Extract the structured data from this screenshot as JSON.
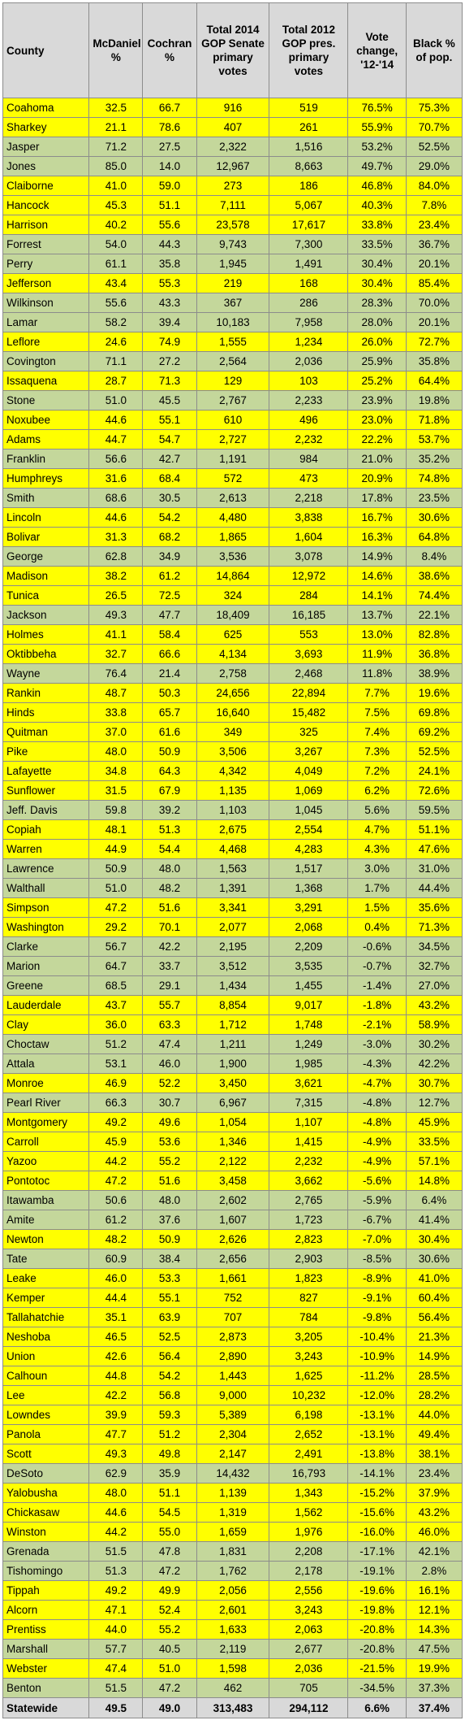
{
  "headers": [
    "County",
    "McDaniel %",
    "Cochran %",
    "Total 2014 GOP Senate primary votes",
    "Total 2012 GOP pres. primary votes",
    "Vote change, '12-'14",
    "Black % of pop."
  ],
  "colors": {
    "header_bg": "#d9d9d9",
    "yellow": "#ffff00",
    "green": "#c4d79b",
    "border": "#8c8c8c"
  },
  "rows": [
    {
      "county": "Coahoma",
      "mcdaniel": "32.5",
      "cochran": "66.7",
      "votes_2014": "916",
      "votes_2012": "519",
      "change": "76.5%",
      "black": "75.3%",
      "hl": "yellow"
    },
    {
      "county": "Sharkey",
      "mcdaniel": "21.1",
      "cochran": "78.6",
      "votes_2014": "407",
      "votes_2012": "261",
      "change": "55.9%",
      "black": "70.7%",
      "hl": "yellow"
    },
    {
      "county": "Jasper",
      "mcdaniel": "71.2",
      "cochran": "27.5",
      "votes_2014": "2,322",
      "votes_2012": "1,516",
      "change": "53.2%",
      "black": "52.5%",
      "hl": "green"
    },
    {
      "county": "Jones",
      "mcdaniel": "85.0",
      "cochran": "14.0",
      "votes_2014": "12,967",
      "votes_2012": "8,663",
      "change": "49.7%",
      "black": "29.0%",
      "hl": "green"
    },
    {
      "county": "Claiborne",
      "mcdaniel": "41.0",
      "cochran": "59.0",
      "votes_2014": "273",
      "votes_2012": "186",
      "change": "46.8%",
      "black": "84.0%",
      "hl": "yellow"
    },
    {
      "county": "Hancock",
      "mcdaniel": "45.3",
      "cochran": "51.1",
      "votes_2014": "7,111",
      "votes_2012": "5,067",
      "change": "40.3%",
      "black": "7.8%",
      "hl": "yellow"
    },
    {
      "county": "Harrison",
      "mcdaniel": "40.2",
      "cochran": "55.6",
      "votes_2014": "23,578",
      "votes_2012": "17,617",
      "change": "33.8%",
      "black": "23.4%",
      "hl": "yellow"
    },
    {
      "county": "Forrest",
      "mcdaniel": "54.0",
      "cochran": "44.3",
      "votes_2014": "9,743",
      "votes_2012": "7,300",
      "change": "33.5%",
      "black": "36.7%",
      "hl": "green"
    },
    {
      "county": "Perry",
      "mcdaniel": "61.1",
      "cochran": "35.8",
      "votes_2014": "1,945",
      "votes_2012": "1,491",
      "change": "30.4%",
      "black": "20.1%",
      "hl": "green"
    },
    {
      "county": "Jefferson",
      "mcdaniel": "43.4",
      "cochran": "55.3",
      "votes_2014": "219",
      "votes_2012": "168",
      "change": "30.4%",
      "black": "85.4%",
      "hl": "yellow"
    },
    {
      "county": "Wilkinson",
      "mcdaniel": "55.6",
      "cochran": "43.3",
      "votes_2014": "367",
      "votes_2012": "286",
      "change": "28.3%",
      "black": "70.0%",
      "hl": "green"
    },
    {
      "county": "Lamar",
      "mcdaniel": "58.2",
      "cochran": "39.4",
      "votes_2014": "10,183",
      "votes_2012": "7,958",
      "change": "28.0%",
      "black": "20.1%",
      "hl": "green"
    },
    {
      "county": "Leflore",
      "mcdaniel": "24.6",
      "cochran": "74.9",
      "votes_2014": "1,555",
      "votes_2012": "1,234",
      "change": "26.0%",
      "black": "72.7%",
      "hl": "yellow"
    },
    {
      "county": "Covington",
      "mcdaniel": "71.1",
      "cochran": "27.2",
      "votes_2014": "2,564",
      "votes_2012": "2,036",
      "change": "25.9%",
      "black": "35.8%",
      "hl": "green"
    },
    {
      "county": "Issaquena",
      "mcdaniel": "28.7",
      "cochran": "71.3",
      "votes_2014": "129",
      "votes_2012": "103",
      "change": "25.2%",
      "black": "64.4%",
      "hl": "yellow"
    },
    {
      "county": "Stone",
      "mcdaniel": "51.0",
      "cochran": "45.5",
      "votes_2014": "2,767",
      "votes_2012": "2,233",
      "change": "23.9%",
      "black": "19.8%",
      "hl": "green"
    },
    {
      "county": "Noxubee",
      "mcdaniel": "44.6",
      "cochran": "55.1",
      "votes_2014": "610",
      "votes_2012": "496",
      "change": "23.0%",
      "black": "71.8%",
      "hl": "yellow"
    },
    {
      "county": "Adams",
      "mcdaniel": "44.7",
      "cochran": "54.7",
      "votes_2014": "2,727",
      "votes_2012": "2,232",
      "change": "22.2%",
      "black": "53.7%",
      "hl": "yellow"
    },
    {
      "county": "Franklin",
      "mcdaniel": "56.6",
      "cochran": "42.7",
      "votes_2014": "1,191",
      "votes_2012": "984",
      "change": "21.0%",
      "black": "35.2%",
      "hl": "green"
    },
    {
      "county": "Humphreys",
      "mcdaniel": "31.6",
      "cochran": "68.4",
      "votes_2014": "572",
      "votes_2012": "473",
      "change": "20.9%",
      "black": "74.8%",
      "hl": "yellow"
    },
    {
      "county": "Smith",
      "mcdaniel": "68.6",
      "cochran": "30.5",
      "votes_2014": "2,613",
      "votes_2012": "2,218",
      "change": "17.8%",
      "black": "23.5%",
      "hl": "green"
    },
    {
      "county": "Lincoln",
      "mcdaniel": "44.6",
      "cochran": "54.2",
      "votes_2014": "4,480",
      "votes_2012": "3,838",
      "change": "16.7%",
      "black": "30.6%",
      "hl": "yellow"
    },
    {
      "county": "Bolivar",
      "mcdaniel": "31.3",
      "cochran": "68.2",
      "votes_2014": "1,865",
      "votes_2012": "1,604",
      "change": "16.3%",
      "black": "64.8%",
      "hl": "yellow"
    },
    {
      "county": "George",
      "mcdaniel": "62.8",
      "cochran": "34.9",
      "votes_2014": "3,536",
      "votes_2012": "3,078",
      "change": "14.9%",
      "black": "8.4%",
      "hl": "green"
    },
    {
      "county": "Madison",
      "mcdaniel": "38.2",
      "cochran": "61.2",
      "votes_2014": "14,864",
      "votes_2012": "12,972",
      "change": "14.6%",
      "black": "38.6%",
      "hl": "yellow"
    },
    {
      "county": "Tunica",
      "mcdaniel": "26.5",
      "cochran": "72.5",
      "votes_2014": "324",
      "votes_2012": "284",
      "change": "14.1%",
      "black": "74.4%",
      "hl": "yellow"
    },
    {
      "county": "Jackson",
      "mcdaniel": "49.3",
      "cochran": "47.7",
      "votes_2014": "18,409",
      "votes_2012": "16,185",
      "change": "13.7%",
      "black": "22.1%",
      "hl": "green"
    },
    {
      "county": "Holmes",
      "mcdaniel": "41.1",
      "cochran": "58.4",
      "votes_2014": "625",
      "votes_2012": "553",
      "change": "13.0%",
      "black": "82.8%",
      "hl": "yellow"
    },
    {
      "county": "Oktibbeha",
      "mcdaniel": "32.7",
      "cochran": "66.6",
      "votes_2014": "4,134",
      "votes_2012": "3,693",
      "change": "11.9%",
      "black": "36.8%",
      "hl": "yellow"
    },
    {
      "county": "Wayne",
      "mcdaniel": "76.4",
      "cochran": "21.4",
      "votes_2014": "2,758",
      "votes_2012": "2,468",
      "change": "11.8%",
      "black": "38.9%",
      "hl": "green"
    },
    {
      "county": "Rankin",
      "mcdaniel": "48.7",
      "cochran": "50.3",
      "votes_2014": "24,656",
      "votes_2012": "22,894",
      "change": "7.7%",
      "black": "19.6%",
      "hl": "yellow"
    },
    {
      "county": "Hinds",
      "mcdaniel": "33.8",
      "cochran": "65.7",
      "votes_2014": "16,640",
      "votes_2012": "15,482",
      "change": "7.5%",
      "black": "69.8%",
      "hl": "yellow"
    },
    {
      "county": "Quitman",
      "mcdaniel": "37.0",
      "cochran": "61.6",
      "votes_2014": "349",
      "votes_2012": "325",
      "change": "7.4%",
      "black": "69.2%",
      "hl": "yellow"
    },
    {
      "county": "Pike",
      "mcdaniel": "48.0",
      "cochran": "50.9",
      "votes_2014": "3,506",
      "votes_2012": "3,267",
      "change": "7.3%",
      "black": "52.5%",
      "hl": "yellow"
    },
    {
      "county": "Lafayette",
      "mcdaniel": "34.8",
      "cochran": "64.3",
      "votes_2014": "4,342",
      "votes_2012": "4,049",
      "change": "7.2%",
      "black": "24.1%",
      "hl": "yellow"
    },
    {
      "county": "Sunflower",
      "mcdaniel": "31.5",
      "cochran": "67.9",
      "votes_2014": "1,135",
      "votes_2012": "1,069",
      "change": "6.2%",
      "black": "72.6%",
      "hl": "yellow"
    },
    {
      "county": "Jeff. Davis",
      "mcdaniel": "59.8",
      "cochran": "39.2",
      "votes_2014": "1,103",
      "votes_2012": "1,045",
      "change": "5.6%",
      "black": "59.5%",
      "hl": "green"
    },
    {
      "county": "Copiah",
      "mcdaniel": "48.1",
      "cochran": "51.3",
      "votes_2014": "2,675",
      "votes_2012": "2,554",
      "change": "4.7%",
      "black": "51.1%",
      "hl": "yellow"
    },
    {
      "county": "Warren",
      "mcdaniel": "44.9",
      "cochran": "54.4",
      "votes_2014": "4,468",
      "votes_2012": "4,283",
      "change": "4.3%",
      "black": "47.6%",
      "hl": "yellow"
    },
    {
      "county": "Lawrence",
      "mcdaniel": "50.9",
      "cochran": "48.0",
      "votes_2014": "1,563",
      "votes_2012": "1,517",
      "change": "3.0%",
      "black": "31.0%",
      "hl": "green"
    },
    {
      "county": "Walthall",
      "mcdaniel": "51.0",
      "cochran": "48.2",
      "votes_2014": "1,391",
      "votes_2012": "1,368",
      "change": "1.7%",
      "black": "44.4%",
      "hl": "green"
    },
    {
      "county": "Simpson",
      "mcdaniel": "47.2",
      "cochran": "51.6",
      "votes_2014": "3,341",
      "votes_2012": "3,291",
      "change": "1.5%",
      "black": "35.6%",
      "hl": "yellow"
    },
    {
      "county": "Washington",
      "mcdaniel": "29.2",
      "cochran": "70.1",
      "votes_2014": "2,077",
      "votes_2012": "2,068",
      "change": "0.4%",
      "black": "71.3%",
      "hl": "yellow"
    },
    {
      "county": "Clarke",
      "mcdaniel": "56.7",
      "cochran": "42.2",
      "votes_2014": "2,195",
      "votes_2012": "2,209",
      "change": "-0.6%",
      "black": "34.5%",
      "hl": "green"
    },
    {
      "county": "Marion",
      "mcdaniel": "64.7",
      "cochran": "33.7",
      "votes_2014": "3,512",
      "votes_2012": "3,535",
      "change": "-0.7%",
      "black": "32.7%",
      "hl": "green"
    },
    {
      "county": "Greene",
      "mcdaniel": "68.5",
      "cochran": "29.1",
      "votes_2014": "1,434",
      "votes_2012": "1,455",
      "change": "-1.4%",
      "black": "27.0%",
      "hl": "green"
    },
    {
      "county": "Lauderdale",
      "mcdaniel": "43.7",
      "cochran": "55.7",
      "votes_2014": "8,854",
      "votes_2012": "9,017",
      "change": "-1.8%",
      "black": "43.2%",
      "hl": "yellow"
    },
    {
      "county": "Clay",
      "mcdaniel": "36.0",
      "cochran": "63.3",
      "votes_2014": "1,712",
      "votes_2012": "1,748",
      "change": "-2.1%",
      "black": "58.9%",
      "hl": "yellow"
    },
    {
      "county": "Choctaw",
      "mcdaniel": "51.2",
      "cochran": "47.4",
      "votes_2014": "1,211",
      "votes_2012": "1,249",
      "change": "-3.0%",
      "black": "30.2%",
      "hl": "green"
    },
    {
      "county": "Attala",
      "mcdaniel": "53.1",
      "cochran": "46.0",
      "votes_2014": "1,900",
      "votes_2012": "1,985",
      "change": "-4.3%",
      "black": "42.2%",
      "hl": "green"
    },
    {
      "county": "Monroe",
      "mcdaniel": "46.9",
      "cochran": "52.2",
      "votes_2014": "3,450",
      "votes_2012": "3,621",
      "change": "-4.7%",
      "black": "30.7%",
      "hl": "yellow"
    },
    {
      "county": "Pearl River",
      "mcdaniel": "66.3",
      "cochran": "30.7",
      "votes_2014": "6,967",
      "votes_2012": "7,315",
      "change": "-4.8%",
      "black": "12.7%",
      "hl": "green"
    },
    {
      "county": "Montgomery",
      "mcdaniel": "49.2",
      "cochran": "49.6",
      "votes_2014": "1,054",
      "votes_2012": "1,107",
      "change": "-4.8%",
      "black": "45.9%",
      "hl": "yellow"
    },
    {
      "county": "Carroll",
      "mcdaniel": "45.9",
      "cochran": "53.6",
      "votes_2014": "1,346",
      "votes_2012": "1,415",
      "change": "-4.9%",
      "black": "33.5%",
      "hl": "yellow"
    },
    {
      "county": "Yazoo",
      "mcdaniel": "44.2",
      "cochran": "55.2",
      "votes_2014": "2,122",
      "votes_2012": "2,232",
      "change": "-4.9%",
      "black": "57.1%",
      "hl": "yellow"
    },
    {
      "county": "Pontotoc",
      "mcdaniel": "47.2",
      "cochran": "51.6",
      "votes_2014": "3,458",
      "votes_2012": "3,662",
      "change": "-5.6%",
      "black": "14.8%",
      "hl": "yellow"
    },
    {
      "county": "Itawamba",
      "mcdaniel": "50.6",
      "cochran": "48.0",
      "votes_2014": "2,602",
      "votes_2012": "2,765",
      "change": "-5.9%",
      "black": "6.4%",
      "hl": "green"
    },
    {
      "county": "Amite",
      "mcdaniel": "61.2",
      "cochran": "37.6",
      "votes_2014": "1,607",
      "votes_2012": "1,723",
      "change": "-6.7%",
      "black": "41.4%",
      "hl": "green"
    },
    {
      "county": "Newton",
      "mcdaniel": "48.2",
      "cochran": "50.9",
      "votes_2014": "2,626",
      "votes_2012": "2,823",
      "change": "-7.0%",
      "black": "30.4%",
      "hl": "yellow"
    },
    {
      "county": "Tate",
      "mcdaniel": "60.9",
      "cochran": "38.4",
      "votes_2014": "2,656",
      "votes_2012": "2,903",
      "change": "-8.5%",
      "black": "30.6%",
      "hl": "green"
    },
    {
      "county": "Leake",
      "mcdaniel": "46.0",
      "cochran": "53.3",
      "votes_2014": "1,661",
      "votes_2012": "1,823",
      "change": "-8.9%",
      "black": "41.0%",
      "hl": "yellow"
    },
    {
      "county": "Kemper",
      "mcdaniel": "44.4",
      "cochran": "55.1",
      "votes_2014": "752",
      "votes_2012": "827",
      "change": "-9.1%",
      "black": "60.4%",
      "hl": "yellow"
    },
    {
      "county": "Tallahatchie",
      "mcdaniel": "35.1",
      "cochran": "63.9",
      "votes_2014": "707",
      "votes_2012": "784",
      "change": "-9.8%",
      "black": "56.4%",
      "hl": "yellow"
    },
    {
      "county": "Neshoba",
      "mcdaniel": "46.5",
      "cochran": "52.5",
      "votes_2014": "2,873",
      "votes_2012": "3,205",
      "change": "-10.4%",
      "black": "21.3%",
      "hl": "yellow"
    },
    {
      "county": "Union",
      "mcdaniel": "42.6",
      "cochran": "56.4",
      "votes_2014": "2,890",
      "votes_2012": "3,243",
      "change": "-10.9%",
      "black": "14.9%",
      "hl": "yellow"
    },
    {
      "county": "Calhoun",
      "mcdaniel": "44.8",
      "cochran": "54.2",
      "votes_2014": "1,443",
      "votes_2012": "1,625",
      "change": "-11.2%",
      "black": "28.5%",
      "hl": "yellow"
    },
    {
      "county": "Lee",
      "mcdaniel": "42.2",
      "cochran": "56.8",
      "votes_2014": "9,000",
      "votes_2012": "10,232",
      "change": "-12.0%",
      "black": "28.2%",
      "hl": "yellow"
    },
    {
      "county": "Lowndes",
      "mcdaniel": "39.9",
      "cochran": "59.3",
      "votes_2014": "5,389",
      "votes_2012": "6,198",
      "change": "-13.1%",
      "black": "44.0%",
      "hl": "yellow"
    },
    {
      "county": "Panola",
      "mcdaniel": "47.7",
      "cochran": "51.2",
      "votes_2014": "2,304",
      "votes_2012": "2,652",
      "change": "-13.1%",
      "black": "49.4%",
      "hl": "yellow"
    },
    {
      "county": "Scott",
      "mcdaniel": "49.3",
      "cochran": "49.8",
      "votes_2014": "2,147",
      "votes_2012": "2,491",
      "change": "-13.8%",
      "black": "38.1%",
      "hl": "yellow"
    },
    {
      "county": "DeSoto",
      "mcdaniel": "62.9",
      "cochran": "35.9",
      "votes_2014": "14,432",
      "votes_2012": "16,793",
      "change": "-14.1%",
      "black": "23.4%",
      "hl": "green"
    },
    {
      "county": "Yalobusha",
      "mcdaniel": "48.0",
      "cochran": "51.1",
      "votes_2014": "1,139",
      "votes_2012": "1,343",
      "change": "-15.2%",
      "black": "37.9%",
      "hl": "yellow"
    },
    {
      "county": "Chickasaw",
      "mcdaniel": "44.6",
      "cochran": "54.5",
      "votes_2014": "1,319",
      "votes_2012": "1,562",
      "change": "-15.6%",
      "black": "43.2%",
      "hl": "yellow"
    },
    {
      "county": "Winston",
      "mcdaniel": "44.2",
      "cochran": "55.0",
      "votes_2014": "1,659",
      "votes_2012": "1,976",
      "change": "-16.0%",
      "black": "46.0%",
      "hl": "yellow"
    },
    {
      "county": "Grenada",
      "mcdaniel": "51.5",
      "cochran": "47.8",
      "votes_2014": "1,831",
      "votes_2012": "2,208",
      "change": "-17.1%",
      "black": "42.1%",
      "hl": "green"
    },
    {
      "county": "Tishomingo",
      "mcdaniel": "51.3",
      "cochran": "47.2",
      "votes_2014": "1,762",
      "votes_2012": "2,178",
      "change": "-19.1%",
      "black": "2.8%",
      "hl": "green"
    },
    {
      "county": "Tippah",
      "mcdaniel": "49.2",
      "cochran": "49.9",
      "votes_2014": "2,056",
      "votes_2012": "2,556",
      "change": "-19.6%",
      "black": "16.1%",
      "hl": "yellow"
    },
    {
      "county": "Alcorn",
      "mcdaniel": "47.1",
      "cochran": "52.4",
      "votes_2014": "2,601",
      "votes_2012": "3,243",
      "change": "-19.8%",
      "black": "12.1%",
      "hl": "yellow"
    },
    {
      "county": "Prentiss",
      "mcdaniel": "44.0",
      "cochran": "55.2",
      "votes_2014": "1,633",
      "votes_2012": "2,063",
      "change": "-20.8%",
      "black": "14.3%",
      "hl": "yellow"
    },
    {
      "county": "Marshall",
      "mcdaniel": "57.7",
      "cochran": "40.5",
      "votes_2014": "2,119",
      "votes_2012": "2,677",
      "change": "-20.8%",
      "black": "47.5%",
      "hl": "green"
    },
    {
      "county": "Webster",
      "mcdaniel": "47.4",
      "cochran": "51.0",
      "votes_2014": "1,598",
      "votes_2012": "2,036",
      "change": "-21.5%",
      "black": "19.9%",
      "hl": "yellow"
    },
    {
      "county": "Benton",
      "mcdaniel": "51.5",
      "cochran": "47.2",
      "votes_2014": "462",
      "votes_2012": "705",
      "change": "-34.5%",
      "black": "37.3%",
      "hl": "green"
    }
  ],
  "totals": {
    "county": "Statewide",
    "mcdaniel": "49.5",
    "cochran": "49.0",
    "votes_2014": "313,483",
    "votes_2012": "294,112",
    "change": "6.6%",
    "black": "37.4%"
  }
}
